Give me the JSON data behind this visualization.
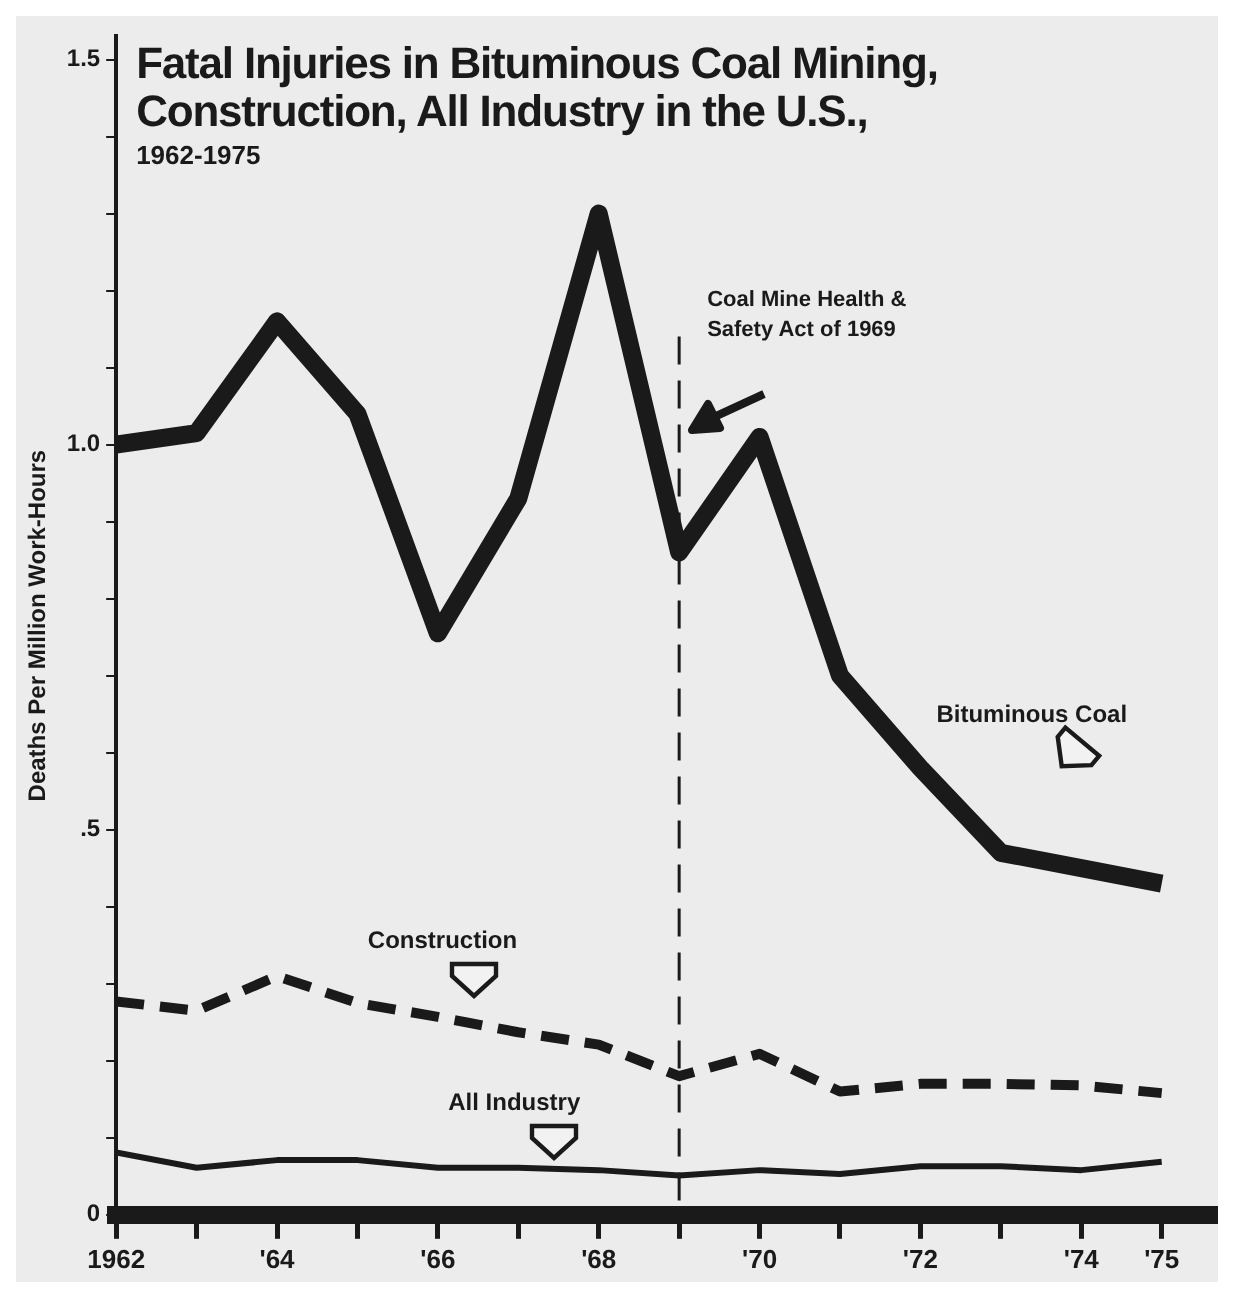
{
  "chart_data": {
    "type": "line",
    "title": "Fatal Injuries in Bituminous Coal Mining, Construction, All Industry in the U.S.,",
    "subtitle": "1962-1975",
    "ylabel": "Deaths Per Million Work-Hours",
    "x": [
      1962,
      1963,
      1964,
      1965,
      1966,
      1967,
      1968,
      1969,
      1970,
      1971,
      1972,
      1973,
      1974,
      1975
    ],
    "series": [
      {
        "name": "Bituminous Coal",
        "color": "#1a1a1a",
        "line_style": "solid",
        "values": [
          1.0,
          1.015,
          1.16,
          1.04,
          0.755,
          0.93,
          1.3,
          0.86,
          1.01,
          0.7,
          0.58,
          0.47,
          0.45,
          0.43
        ]
      },
      {
        "name": "Construction",
        "color": "#1a1a1a",
        "line_style": "dashed",
        "values": [
          0.277,
          0.265,
          0.31,
          0.275,
          0.257,
          0.237,
          0.221,
          0.18,
          0.209,
          0.16,
          0.17,
          0.17,
          0.168,
          0.158
        ]
      },
      {
        "name": "All Industry",
        "color": "#1a1a1a",
        "line_style": "solid",
        "values": [
          0.081,
          0.061,
          0.071,
          0.071,
          0.061,
          0.061,
          0.058,
          0.051,
          0.058,
          0.053,
          0.063,
          0.063,
          0.058,
          0.069
        ]
      }
    ],
    "xlim": [
      1962,
      1975.7
    ],
    "xticks": [
      {
        "value": 1962,
        "label": "1962"
      },
      {
        "value": 1963,
        "label": null
      },
      {
        "value": 1964,
        "label": "'64"
      },
      {
        "value": 1965,
        "label": null
      },
      {
        "value": 1966,
        "label": "'66"
      },
      {
        "value": 1967,
        "label": null
      },
      {
        "value": 1968,
        "label": "'68"
      },
      {
        "value": 1969,
        "label": null
      },
      {
        "value": 1970,
        "label": "'70"
      },
      {
        "value": 1971,
        "label": null
      },
      {
        "value": 1972,
        "label": "'72"
      },
      {
        "value": 1973,
        "label": null
      },
      {
        "value": 1974,
        "label": "'74"
      },
      {
        "value": 1975,
        "label": "'75"
      }
    ],
    "ylim": [
      0,
      1.53
    ],
    "yticks": [
      {
        "value": 0,
        "label": "0"
      },
      {
        "value": 0.1,
        "label": null
      },
      {
        "value": 0.2,
        "label": null
      },
      {
        "value": 0.3,
        "label": null
      },
      {
        "value": 0.4,
        "label": null
      },
      {
        "value": 0.5,
        "label": ".5"
      },
      {
        "value": 0.6,
        "label": null
      },
      {
        "value": 0.7,
        "label": null
      },
      {
        "value": 0.8,
        "label": null
      },
      {
        "value": 0.9,
        "label": null
      },
      {
        "value": 1.0,
        "label": "1.0"
      },
      {
        "value": 1.1,
        "label": null
      },
      {
        "value": 1.2,
        "label": null
      },
      {
        "value": 1.3,
        "label": null
      },
      {
        "value": 1.4,
        "label": null
      },
      {
        "value": 1.5,
        "label": "1.5"
      }
    ],
    "ref_lines": [
      {
        "axis": "x",
        "value": 1969,
        "label": "Coal Mine Health & Safety Act of 1969",
        "line_style": "dashed",
        "color": "#1a1a1a"
      }
    ],
    "grid": false,
    "legend": false,
    "marker": "none"
  }
}
